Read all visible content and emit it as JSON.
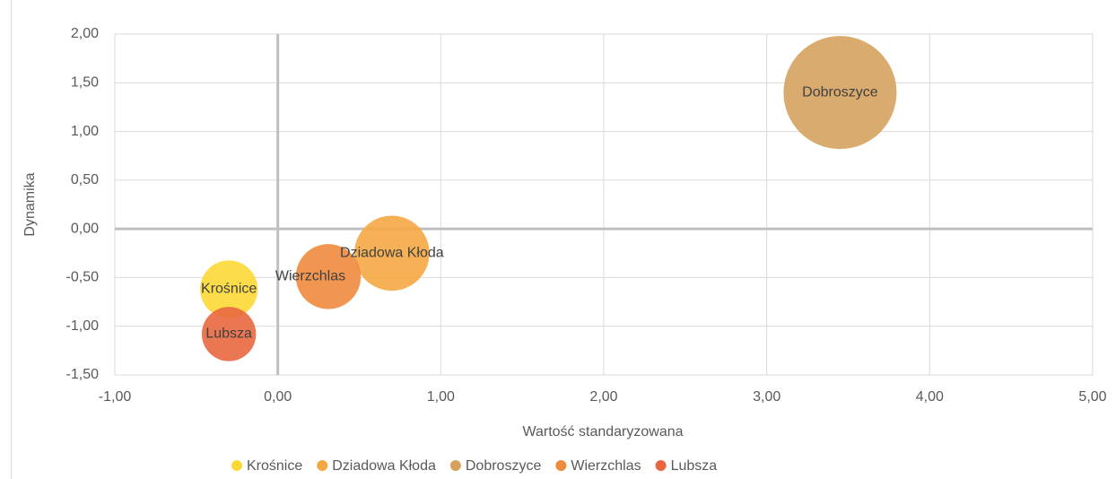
{
  "chart_data": {
    "type": "bubble",
    "xlabel": "Wartość standaryzowana",
    "ylabel": "Dynamika",
    "xlim": [
      -1,
      5
    ],
    "ylim": [
      -1.5,
      2
    ],
    "xticks": [
      {
        "value": -1,
        "label": "-1,00"
      },
      {
        "value": 0,
        "label": "0,00"
      },
      {
        "value": 1,
        "label": "1,00"
      },
      {
        "value": 2,
        "label": "2,00"
      },
      {
        "value": 3,
        "label": "3,00"
      },
      {
        "value": 4,
        "label": "4,00"
      },
      {
        "value": 5,
        "label": "5,00"
      }
    ],
    "yticks": [
      {
        "value": -1.5,
        "label": "-1,50"
      },
      {
        "value": -1,
        "label": "-1,00"
      },
      {
        "value": -0.5,
        "label": "-0,50"
      },
      {
        "value": 0,
        "label": "0,00"
      },
      {
        "value": 0.5,
        "label": "0,50"
      },
      {
        "value": 1,
        "label": "1,00"
      },
      {
        "value": 1.5,
        "label": "1,50"
      },
      {
        "value": 2,
        "label": "2,00"
      }
    ],
    "grid": true,
    "legend": "bottom",
    "series": [
      {
        "name": "Krośnice",
        "color": "#FDD835",
        "x": [
          -0.3
        ],
        "values": [
          -0.62
        ],
        "sizes": [
          26
        ]
      },
      {
        "name": "Dziadowa Kłoda",
        "color": "#F5A742",
        "x": [
          0.7
        ],
        "values": [
          -0.25
        ],
        "sizes": [
          44
        ]
      },
      {
        "name": "Dobroszyce",
        "color": "#D6A25E",
        "x": [
          3.45
        ],
        "values": [
          1.4
        ],
        "sizes": [
          100
        ]
      },
      {
        "name": "Wierzchlas",
        "color": "#EF8B3D",
        "x": [
          0.31
        ],
        "values": [
          -0.49
        ],
        "sizes": [
          33
        ]
      },
      {
        "name": "Lubsza",
        "color": "#E9673F",
        "x": [
          -0.3
        ],
        "values": [
          -1.08
        ],
        "sizes": [
          23
        ]
      }
    ]
  }
}
